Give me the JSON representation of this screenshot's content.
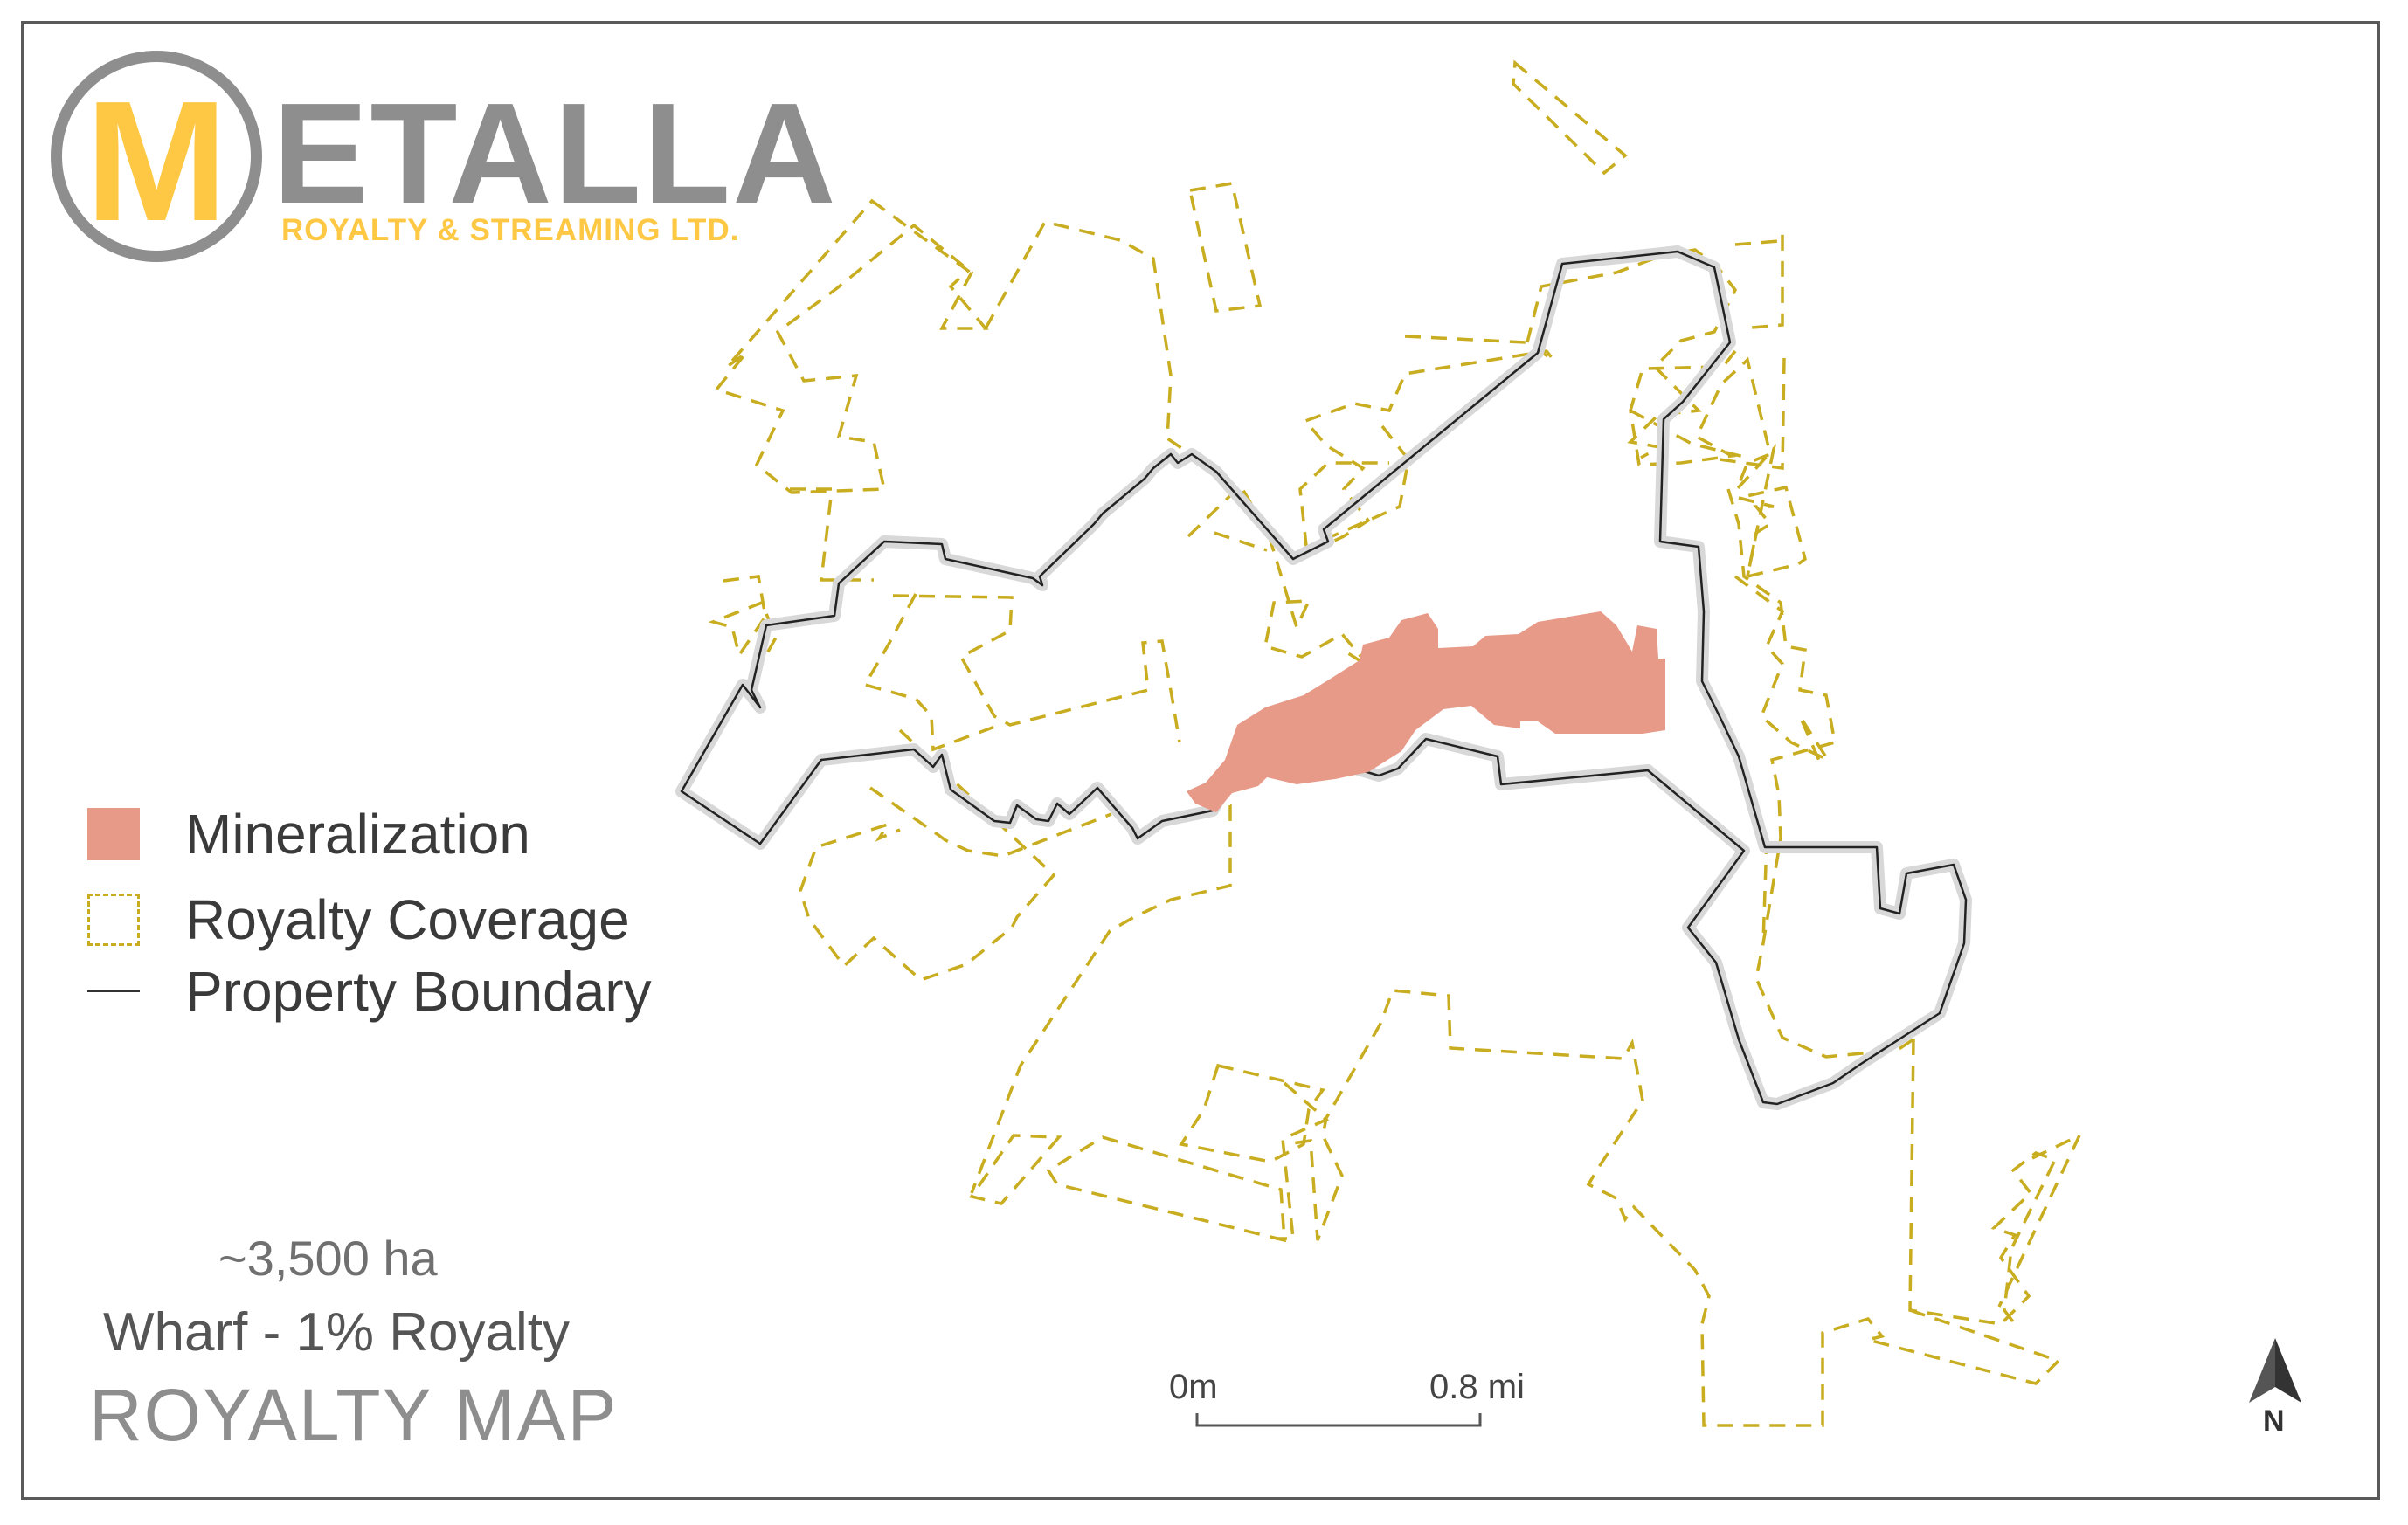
{
  "logo": {
    "letter": "M",
    "word": "ETALLA",
    "tagline": "ROYALTY & STREAMING LTD."
  },
  "legend": {
    "items": [
      {
        "label": "Mineralization",
        "symbol": "mineralization-swatch",
        "color": "#e89a89"
      },
      {
        "label": "Royalty Coverage",
        "symbol": "royalty-dashed-swatch",
        "color": "#c9ad20"
      },
      {
        "label": "Property Boundary",
        "symbol": "property-line-swatch",
        "color": "#333333"
      }
    ]
  },
  "info": {
    "area": "~3,500 ha",
    "property": "Wharf - 1% Royalty",
    "title": "ROYALTY MAP"
  },
  "scale_bar": {
    "start_label": "0m",
    "end_label": "0.8 mi"
  },
  "north_arrow": {
    "label": "N",
    "icon": "north-arrow-icon"
  },
  "colors": {
    "accent": "#ffc844",
    "logo_gray": "#8e8e8e",
    "royalty": "#c9ad20",
    "boundary": "#222222",
    "mineralization": "#e89a89"
  }
}
